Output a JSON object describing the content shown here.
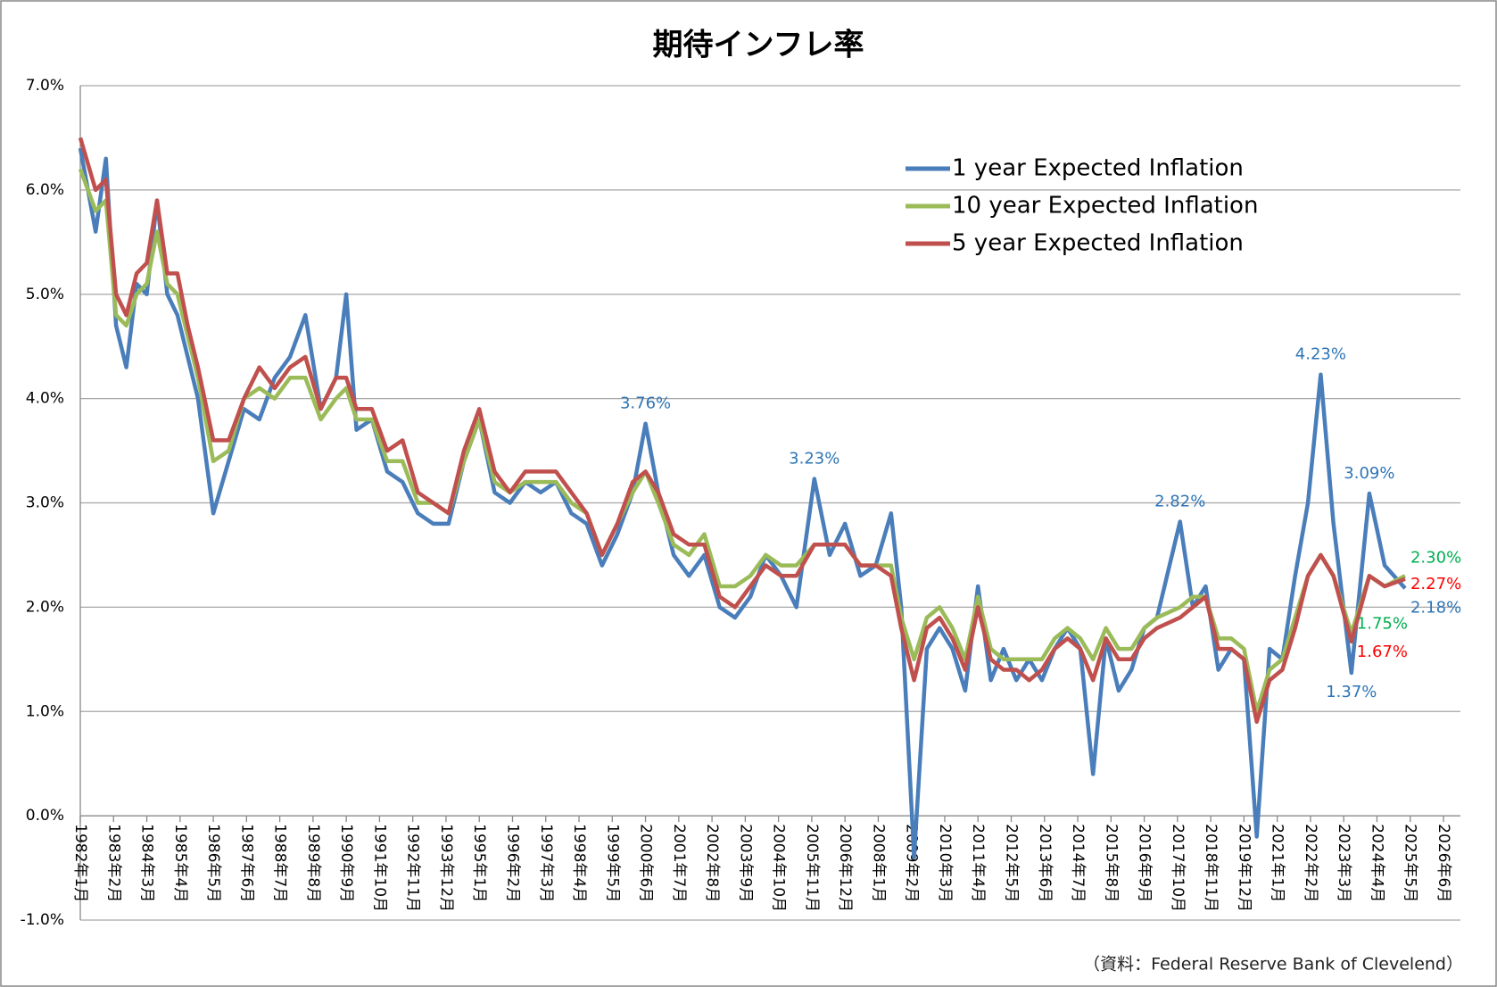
{
  "chart_data": {
    "type": "line",
    "title": "期待インフレ率",
    "source": "（資料：Federal Reserve Bank of Clevelend）",
    "legend": "upper right",
    "grid": true,
    "ylim": [
      -1,
      7
    ],
    "yticks": [
      {
        "value": -1,
        "label": "-1.0%"
      },
      {
        "value": 0,
        "label": "0.0%"
      },
      {
        "value": 1,
        "label": "1.0%"
      },
      {
        "value": 2,
        "label": "2.0%"
      },
      {
        "value": 3,
        "label": "3.0%"
      },
      {
        "value": 4,
        "label": "4.0%"
      },
      {
        "value": 5,
        "label": "5.0%"
      },
      {
        "value": 6,
        "label": "6.0%"
      },
      {
        "value": 7,
        "label": "7.0%"
      }
    ],
    "xlim": [
      "1982年1月",
      "2026年6月"
    ],
    "xticks": [
      "1982年1月",
      "1983年2月",
      "1984年3月",
      "1985年4月",
      "1986年5月",
      "1987年6月",
      "1988年7月",
      "1989年8月",
      "1990年9月",
      "1991年10月",
      "1992年11月",
      "1993年12月",
      "1995年1月",
      "1996年2月",
      "1997年3月",
      "1998年4月",
      "1999年5月",
      "2000年6月",
      "2001年7月",
      "2002年8月",
      "2003年9月",
      "2004年10月",
      "2005年11月",
      "2006年12月",
      "2008年1月",
      "2009年2月",
      "2010年3月",
      "2011年4月",
      "2012年5月",
      "2013年6月",
      "2014年7月",
      "2015年8月",
      "2016年9月",
      "2017年10月",
      "2018年11月",
      "2019年12月",
      "2021年1月",
      "2022年2月",
      "2023年3月",
      "2024年4月",
      "2025年5月",
      "2026年6月"
    ],
    "x": [
      "1982年1月",
      "1982年7月",
      "1982年11月",
      "1983年3月",
      "1983年7月",
      "1983年11月",
      "1984年3月",
      "1984年7月",
      "1984年11月",
      "1985年3月",
      "1985年7月",
      "1985年11月",
      "1986年5月",
      "1986年11月",
      "1987年5月",
      "1987年11月",
      "1988年5月",
      "1988年11月",
      "1989年5月",
      "1989年11月",
      "1990年5月",
      "1990年9月",
      "1991年1月",
      "1991年7月",
      "1992年1月",
      "1992年7月",
      "1993年1月",
      "1993年7月",
      "1994年1月",
      "1994年7月",
      "1995年1月",
      "1995年7月",
      "1996年1月",
      "1996年7月",
      "1997年1月",
      "1997年7月",
      "1998年1月",
      "1998年7月",
      "1999年1月",
      "1999年7月",
      "2000年1月",
      "2000年6月",
      "2000年11月",
      "2001年5月",
      "2001年11月",
      "2002年5月",
      "2002年11月",
      "2003年5月",
      "2003年11月",
      "2004年5月",
      "2004年11月",
      "2005年5月",
      "2005年12月",
      "2006年6月",
      "2006年12月",
      "2007年6月",
      "2007年12月",
      "2008年6月",
      "2008年10月",
      "2009年3月",
      "2009年8月",
      "2010年1月",
      "2010年6月",
      "2010年11月",
      "2011年4月",
      "2011年9月",
      "2012年2月",
      "2012年7月",
      "2012年12月",
      "2013年5月",
      "2013年10月",
      "2014年3月",
      "2014年8月",
      "2015年1月",
      "2015年6月",
      "2015年11月",
      "2016年4月",
      "2016年9月",
      "2017年2月",
      "2017年11月",
      "2018年4月",
      "2018年9月",
      "2019年2月",
      "2019年7月",
      "2019年12月",
      "2020年5月",
      "2020年10月",
      "2021年3月",
      "2021年8月",
      "2022年1月",
      "2022年6月",
      "2022年11月",
      "2023年6月",
      "2024年1月",
      "2024年7月",
      "2025年3月"
    ],
    "series": [
      {
        "name": "1 year Expected Inflation",
        "color": "#4a7ebb",
        "label_color": "#2e75b6",
        "values": [
          6.4,
          5.6,
          6.3,
          4.7,
          4.3,
          5.1,
          5.0,
          5.9,
          5.0,
          4.8,
          4.4,
          4.0,
          2.9,
          3.4,
          3.9,
          3.8,
          4.2,
          4.4,
          4.8,
          3.9,
          4.2,
          5.0,
          3.7,
          3.8,
          3.3,
          3.2,
          2.9,
          2.8,
          2.8,
          3.4,
          3.8,
          3.1,
          3.0,
          3.2,
          3.1,
          3.2,
          2.9,
          2.8,
          2.4,
          2.7,
          3.1,
          3.76,
          3.1,
          2.5,
          2.3,
          2.5,
          2.0,
          1.9,
          2.1,
          2.5,
          2.3,
          2.0,
          3.23,
          2.5,
          2.8,
          2.3,
          2.4,
          2.9,
          2.0,
          -0.4,
          1.6,
          1.8,
          1.6,
          1.2,
          2.2,
          1.3,
          1.6,
          1.3,
          1.5,
          1.3,
          1.6,
          1.8,
          1.6,
          0.4,
          1.7,
          1.2,
          1.4,
          1.8,
          1.9,
          2.82,
          2.0,
          2.2,
          1.4,
          1.6,
          1.5,
          -0.2,
          1.6,
          1.5,
          2.3,
          3.0,
          4.23,
          2.8,
          1.37,
          3.09,
          2.4,
          2.18
        ],
        "value_labels": [
          null,
          null,
          null,
          null,
          null,
          null,
          null,
          null,
          null,
          null,
          null,
          null,
          null,
          null,
          null,
          null,
          null,
          null,
          null,
          null,
          null,
          null,
          null,
          null,
          null,
          null,
          null,
          null,
          null,
          null,
          null,
          null,
          null,
          null,
          null,
          null,
          null,
          null,
          null,
          null,
          null,
          "3.76%",
          null,
          null,
          null,
          null,
          null,
          null,
          null,
          null,
          null,
          null,
          "3.23%",
          null,
          null,
          null,
          null,
          null,
          null,
          null,
          null,
          null,
          null,
          null,
          null,
          null,
          null,
          null,
          null,
          null,
          null,
          null,
          null,
          null,
          null,
          null,
          null,
          null,
          null,
          "2.82%",
          null,
          null,
          null,
          null,
          null,
          null,
          null,
          null,
          null,
          null,
          "4.23%",
          null,
          "1.37%",
          "3.09%",
          null,
          "2.18%"
        ]
      },
      {
        "name": "10 year Expected Inflation",
        "color": "#9bbb59",
        "label_color": "#00b050",
        "values": [
          6.2,
          5.8,
          5.9,
          4.8,
          4.7,
          5.0,
          5.1,
          5.6,
          5.1,
          5.0,
          4.6,
          4.2,
          3.4,
          3.5,
          4.0,
          4.1,
          4.0,
          4.2,
          4.2,
          3.8,
          4.0,
          4.1,
          3.8,
          3.8,
          3.4,
          3.4,
          3.0,
          3.0,
          2.9,
          3.4,
          3.8,
          3.2,
          3.1,
          3.2,
          3.2,
          3.2,
          3.0,
          2.9,
          2.5,
          2.8,
          3.1,
          3.3,
          3.0,
          2.6,
          2.5,
          2.7,
          2.2,
          2.2,
          2.3,
          2.5,
          2.4,
          2.4,
          2.6,
          2.6,
          2.6,
          2.4,
          2.4,
          2.4,
          1.9,
          1.5,
          1.9,
          2.0,
          1.8,
          1.5,
          2.1,
          1.6,
          1.5,
          1.5,
          1.5,
          1.5,
          1.7,
          1.8,
          1.7,
          1.5,
          1.8,
          1.6,
          1.6,
          1.8,
          1.9,
          2.0,
          2.1,
          2.1,
          1.7,
          1.7,
          1.6,
          1.0,
          1.4,
          1.5,
          1.9,
          2.3,
          2.5,
          2.3,
          1.75,
          2.3,
          2.2,
          2.3
        ],
        "value_labels": [
          null,
          null,
          null,
          null,
          null,
          null,
          null,
          null,
          null,
          null,
          null,
          null,
          null,
          null,
          null,
          null,
          null,
          null,
          null,
          null,
          null,
          null,
          null,
          null,
          null,
          null,
          null,
          null,
          null,
          null,
          null,
          null,
          null,
          null,
          null,
          null,
          null,
          null,
          null,
          null,
          null,
          null,
          null,
          null,
          null,
          null,
          null,
          null,
          null,
          null,
          null,
          null,
          null,
          null,
          null,
          null,
          null,
          null,
          null,
          null,
          null,
          null,
          null,
          null,
          null,
          null,
          null,
          null,
          null,
          null,
          null,
          null,
          null,
          null,
          null,
          null,
          null,
          null,
          null,
          null,
          null,
          null,
          null,
          null,
          null,
          null,
          null,
          null,
          null,
          null,
          null,
          null,
          "1.75%",
          null,
          null,
          "2.30%"
        ]
      },
      {
        "name": "5 year Expected Inflation",
        "color": "#c0504d",
        "label_color": "#ff0000",
        "values": [
          6.5,
          6.0,
          6.1,
          5.0,
          4.8,
          5.2,
          5.3,
          5.9,
          5.2,
          5.2,
          4.7,
          4.3,
          3.6,
          3.6,
          4.0,
          4.3,
          4.1,
          4.3,
          4.4,
          3.9,
          4.2,
          4.2,
          3.9,
          3.9,
          3.5,
          3.6,
          3.1,
          3.0,
          2.9,
          3.5,
          3.9,
          3.3,
          3.1,
          3.3,
          3.3,
          3.3,
          3.1,
          2.9,
          2.5,
          2.8,
          3.2,
          3.3,
          3.1,
          2.7,
          2.6,
          2.6,
          2.1,
          2.0,
          2.2,
          2.4,
          2.3,
          2.3,
          2.6,
          2.6,
          2.6,
          2.4,
          2.4,
          2.3,
          1.8,
          1.3,
          1.8,
          1.9,
          1.7,
          1.4,
          2.0,
          1.5,
          1.4,
          1.4,
          1.3,
          1.4,
          1.6,
          1.7,
          1.6,
          1.3,
          1.7,
          1.5,
          1.5,
          1.7,
          1.8,
          1.9,
          2.0,
          2.1,
          1.6,
          1.6,
          1.5,
          0.9,
          1.3,
          1.4,
          1.8,
          2.3,
          2.5,
          2.3,
          1.67,
          2.3,
          2.2,
          2.27
        ],
        "value_labels": [
          null,
          null,
          null,
          null,
          null,
          null,
          null,
          null,
          null,
          null,
          null,
          null,
          null,
          null,
          null,
          null,
          null,
          null,
          null,
          null,
          null,
          null,
          null,
          null,
          null,
          null,
          null,
          null,
          null,
          null,
          null,
          null,
          null,
          null,
          null,
          null,
          null,
          null,
          null,
          null,
          null,
          null,
          null,
          null,
          null,
          null,
          null,
          null,
          null,
          null,
          null,
          null,
          null,
          null,
          null,
          null,
          null,
          null,
          null,
          null,
          null,
          null,
          null,
          null,
          null,
          null,
          null,
          null,
          null,
          null,
          null,
          null,
          null,
          null,
          null,
          null,
          null,
          null,
          null,
          null,
          null,
          null,
          null,
          null,
          null,
          null,
          null,
          null,
          null,
          null,
          null,
          null,
          "1.67%",
          null,
          null,
          "2.27%"
        ]
      }
    ]
  }
}
